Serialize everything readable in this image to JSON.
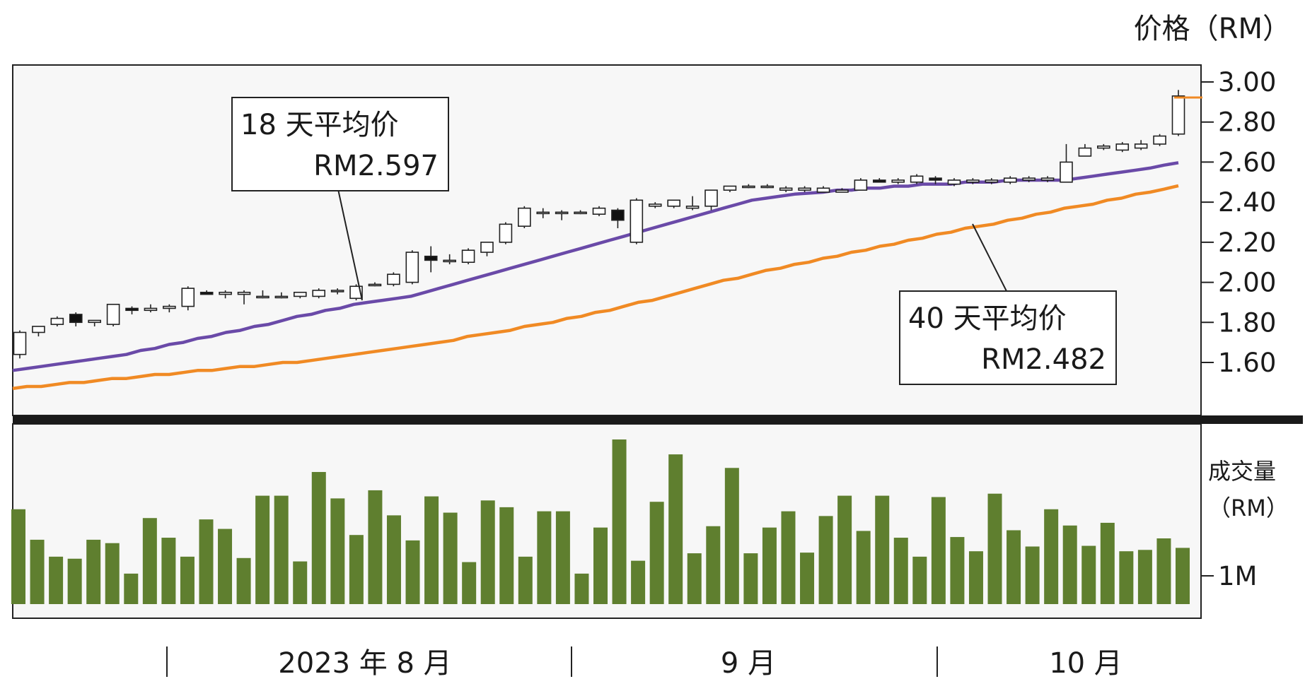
{
  "chart_data": {
    "type": "candlestick",
    "y_axis_title": "价格（RM）",
    "y_ticks": [
      "3.00",
      "2.80",
      "2.60",
      "2.40",
      "2.20",
      "2.00",
      "1.80",
      "1.60"
    ],
    "ylim": [
      1.44,
      3.08
    ],
    "volume_axis_title_line1": "成交量",
    "volume_axis_title_line2": "（RM）",
    "volume_ticks": [
      {
        "label": "1M",
        "value": 1.0
      }
    ],
    "volume_ylim": [
      0,
      2.4
    ],
    "x_labels": [
      "2023 年 8 月",
      "9 月",
      "10 月"
    ],
    "grid": false,
    "series": [
      {
        "name": "18 天平均价",
        "value_label": "RM2.597",
        "color": "#6a4aa8",
        "values": [
          1.56,
          1.57,
          1.58,
          1.59,
          1.6,
          1.61,
          1.62,
          1.63,
          1.64,
          1.66,
          1.67,
          1.69,
          1.7,
          1.72,
          1.73,
          1.75,
          1.76,
          1.78,
          1.79,
          1.81,
          1.83,
          1.84,
          1.86,
          1.87,
          1.89,
          1.9,
          1.91,
          1.92,
          1.93,
          1.95,
          1.97,
          1.99,
          2.01,
          2.03,
          2.05,
          2.07,
          2.09,
          2.11,
          2.13,
          2.15,
          2.17,
          2.19,
          2.21,
          2.23,
          2.25,
          2.27,
          2.29,
          2.31,
          2.33,
          2.35,
          2.37,
          2.39,
          2.41,
          2.42,
          2.43,
          2.44,
          2.445,
          2.45,
          2.46,
          2.46,
          2.47,
          2.47,
          2.48,
          2.48,
          2.49,
          2.49,
          2.49,
          2.5,
          2.5,
          2.5,
          2.51,
          2.51,
          2.51,
          2.51,
          2.51,
          2.52,
          2.53,
          2.54,
          2.55,
          2.56,
          2.57,
          2.585,
          2.597
        ]
      },
      {
        "name": "40 天平均价",
        "value_label": "RM2.482",
        "color": "#f08a24",
        "values": [
          1.47,
          1.48,
          1.48,
          1.49,
          1.5,
          1.5,
          1.51,
          1.52,
          1.52,
          1.53,
          1.54,
          1.54,
          1.55,
          1.56,
          1.56,
          1.57,
          1.58,
          1.58,
          1.59,
          1.6,
          1.6,
          1.61,
          1.62,
          1.63,
          1.64,
          1.65,
          1.66,
          1.67,
          1.68,
          1.69,
          1.7,
          1.71,
          1.73,
          1.74,
          1.75,
          1.76,
          1.78,
          1.79,
          1.8,
          1.82,
          1.83,
          1.85,
          1.86,
          1.88,
          1.9,
          1.91,
          1.93,
          1.95,
          1.97,
          1.99,
          2.01,
          2.02,
          2.04,
          2.06,
          2.07,
          2.09,
          2.1,
          2.12,
          2.13,
          2.15,
          2.16,
          2.18,
          2.19,
          2.21,
          2.22,
          2.24,
          2.25,
          2.27,
          2.28,
          2.29,
          2.31,
          2.32,
          2.34,
          2.35,
          2.37,
          2.38,
          2.39,
          2.41,
          2.42,
          2.44,
          2.45,
          2.465,
          2.482
        ]
      }
    ],
    "candles": [
      {
        "o": 1.64,
        "h": 1.76,
        "l": 1.62,
        "c": 1.75
      },
      {
        "o": 1.75,
        "h": 1.78,
        "l": 1.73,
        "c": 1.78
      },
      {
        "o": 1.79,
        "h": 1.83,
        "l": 1.78,
        "c": 1.82
      },
      {
        "o": 1.84,
        "h": 1.85,
        "l": 1.78,
        "c": 1.8
      },
      {
        "o": 1.8,
        "h": 1.81,
        "l": 1.78,
        "c": 1.81
      },
      {
        "o": 1.79,
        "h": 1.89,
        "l": 1.78,
        "c": 1.89
      },
      {
        "o": 1.87,
        "h": 1.88,
        "l": 1.84,
        "c": 1.86
      },
      {
        "o": 1.86,
        "h": 1.89,
        "l": 1.85,
        "c": 1.87
      },
      {
        "o": 1.87,
        "h": 1.89,
        "l": 1.85,
        "c": 1.88
      },
      {
        "o": 1.88,
        "h": 1.98,
        "l": 1.86,
        "c": 1.97
      },
      {
        "o": 1.95,
        "h": 1.96,
        "l": 1.94,
        "c": 1.94
      },
      {
        "o": 1.94,
        "h": 1.96,
        "l": 1.92,
        "c": 1.95
      },
      {
        "o": 1.94,
        "h": 1.96,
        "l": 1.89,
        "c": 1.95
      },
      {
        "o": 1.93,
        "h": 1.96,
        "l": 1.92,
        "c": 1.93
      },
      {
        "o": 1.93,
        "h": 1.95,
        "l": 1.92,
        "c": 1.93
      },
      {
        "o": 1.93,
        "h": 1.95,
        "l": 1.92,
        "c": 1.95
      },
      {
        "o": 1.93,
        "h": 1.97,
        "l": 1.92,
        "c": 1.96
      },
      {
        "o": 1.96,
        "h": 1.97,
        "l": 1.94,
        "c": 1.96
      },
      {
        "o": 1.92,
        "h": 1.99,
        "l": 1.91,
        "c": 1.98
      },
      {
        "o": 1.99,
        "h": 2.0,
        "l": 1.98,
        "c": 1.99
      },
      {
        "o": 1.99,
        "h": 2.05,
        "l": 1.98,
        "c": 2.04
      },
      {
        "o": 2.0,
        "h": 2.16,
        "l": 1.99,
        "c": 2.15
      },
      {
        "o": 2.13,
        "h": 2.18,
        "l": 2.05,
        "c": 2.11
      },
      {
        "o": 2.11,
        "h": 2.14,
        "l": 2.09,
        "c": 2.11
      },
      {
        "o": 2.1,
        "h": 2.17,
        "l": 2.09,
        "c": 2.16
      },
      {
        "o": 2.15,
        "h": 2.2,
        "l": 2.13,
        "c": 2.2
      },
      {
        "o": 2.2,
        "h": 2.3,
        "l": 2.19,
        "c": 2.29
      },
      {
        "o": 2.28,
        "h": 2.38,
        "l": 2.27,
        "c": 2.37
      },
      {
        "o": 2.35,
        "h": 2.37,
        "l": 2.32,
        "c": 2.35
      },
      {
        "o": 2.35,
        "h": 2.36,
        "l": 2.31,
        "c": 2.35
      },
      {
        "o": 2.35,
        "h": 2.36,
        "l": 2.34,
        "c": 2.35
      },
      {
        "o": 2.34,
        "h": 2.38,
        "l": 2.33,
        "c": 2.37
      },
      {
        "o": 2.36,
        "h": 2.37,
        "l": 2.27,
        "c": 2.31
      },
      {
        "o": 2.2,
        "h": 2.42,
        "l": 2.19,
        "c": 2.41
      },
      {
        "o": 2.38,
        "h": 2.4,
        "l": 2.37,
        "c": 2.39
      },
      {
        "o": 2.38,
        "h": 2.41,
        "l": 2.37,
        "c": 2.41
      },
      {
        "o": 2.37,
        "h": 2.43,
        "l": 2.36,
        "c": 2.38
      },
      {
        "o": 2.38,
        "h": 2.46,
        "l": 2.36,
        "c": 2.46
      },
      {
        "o": 2.46,
        "h": 2.48,
        "l": 2.45,
        "c": 2.48
      },
      {
        "o": 2.48,
        "h": 2.49,
        "l": 2.47,
        "c": 2.48
      },
      {
        "o": 2.48,
        "h": 2.49,
        "l": 2.47,
        "c": 2.48
      },
      {
        "o": 2.46,
        "h": 2.48,
        "l": 2.45,
        "c": 2.47
      },
      {
        "o": 2.46,
        "h": 2.48,
        "l": 2.45,
        "c": 2.47
      },
      {
        "o": 2.45,
        "h": 2.48,
        "l": 2.45,
        "c": 2.47
      },
      {
        "o": 2.45,
        "h": 2.47,
        "l": 2.45,
        "c": 2.46
      },
      {
        "o": 2.46,
        "h": 2.52,
        "l": 2.46,
        "c": 2.51
      },
      {
        "o": 2.51,
        "h": 2.52,
        "l": 2.5,
        "c": 2.5
      },
      {
        "o": 2.5,
        "h": 2.52,
        "l": 2.49,
        "c": 2.51
      },
      {
        "o": 2.5,
        "h": 2.54,
        "l": 2.49,
        "c": 2.53
      },
      {
        "o": 2.52,
        "h": 2.53,
        "l": 2.49,
        "c": 2.51
      },
      {
        "o": 2.49,
        "h": 2.52,
        "l": 2.48,
        "c": 2.51
      },
      {
        "o": 2.5,
        "h": 2.52,
        "l": 2.49,
        "c": 2.51
      },
      {
        "o": 2.5,
        "h": 2.52,
        "l": 2.49,
        "c": 2.51
      },
      {
        "o": 2.5,
        "h": 2.53,
        "l": 2.49,
        "c": 2.52
      },
      {
        "o": 2.51,
        "h": 2.53,
        "l": 2.5,
        "c": 2.52
      },
      {
        "o": 2.51,
        "h": 2.53,
        "l": 2.5,
        "c": 2.52
      },
      {
        "o": 2.5,
        "h": 2.69,
        "l": 2.5,
        "c": 2.6
      },
      {
        "o": 2.63,
        "h": 2.69,
        "l": 2.63,
        "c": 2.67
      },
      {
        "o": 2.67,
        "h": 2.69,
        "l": 2.66,
        "c": 2.68
      },
      {
        "o": 2.66,
        "h": 2.7,
        "l": 2.65,
        "c": 2.69
      },
      {
        "o": 2.67,
        "h": 2.71,
        "l": 2.66,
        "c": 2.69
      },
      {
        "o": 2.69,
        "h": 2.74,
        "l": 2.68,
        "c": 2.73
      },
      {
        "o": 2.74,
        "h": 2.96,
        "l": 2.73,
        "c": 2.93
      }
    ],
    "volume": [
      1.4,
      0.95,
      0.7,
      0.67,
      0.95,
      0.9,
      0.45,
      1.27,
      0.98,
      0.7,
      1.25,
      1.11,
      0.68,
      1.6,
      1.6,
      0.63,
      1.95,
      1.56,
      1.02,
      1.68,
      1.31,
      0.94,
      1.59,
      1.35,
      0.62,
      1.53,
      1.43,
      0.7,
      1.37,
      1.37,
      0.45,
      1.13,
      2.43,
      0.64,
      1.51,
      2.21,
      0.75,
      1.15,
      2.01,
      0.75,
      1.13,
      1.37,
      0.76,
      1.3,
      1.6,
      1.08,
      1.6,
      0.98,
      0.7,
      1.58,
      0.99,
      0.78,
      1.63,
      1.09,
      0.85,
      1.4,
      1.16,
      0.86,
      1.2,
      0.78,
      0.8,
      0.97,
      0.83
    ]
  },
  "annotations": {
    "ma18": {
      "line1": "18 天平均价",
      "line2": "RM2.597"
    },
    "ma40": {
      "line1": "40 天平均价",
      "line2": "RM2.482"
    }
  }
}
